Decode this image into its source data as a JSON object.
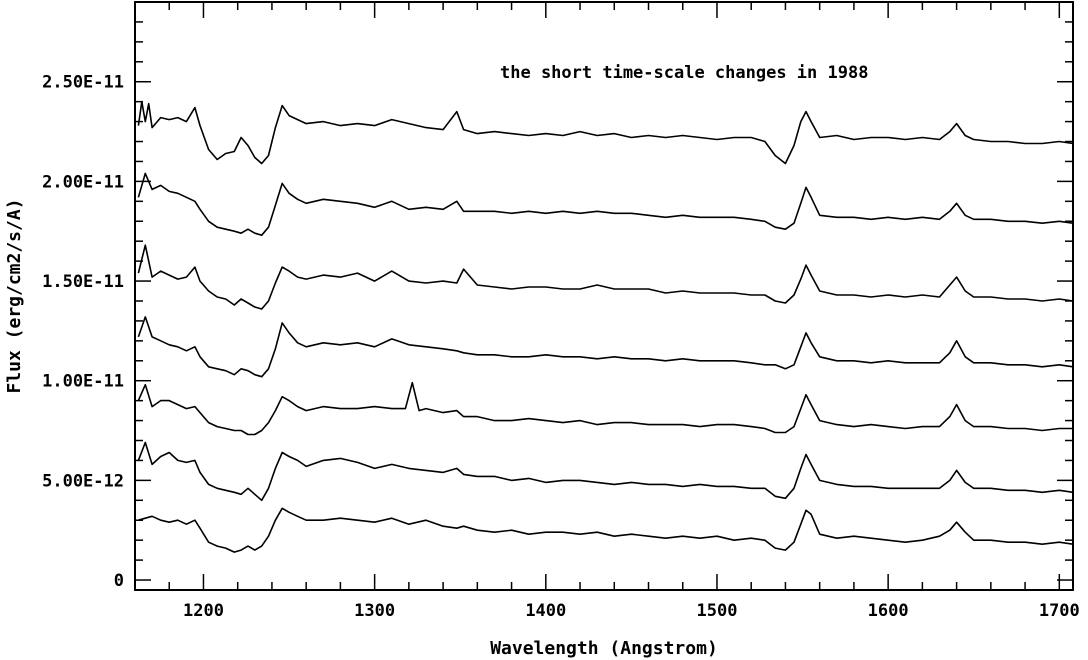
{
  "chart_data": {
    "type": "line",
    "title": "",
    "annotation": "the short time-scale changes in 1988",
    "xlabel": "Wavelength (Angstrom)",
    "ylabel": "Flux (erg/cm2/s/A)",
    "xlim": [
      1160,
      1708
    ],
    "ylim": [
      -5e-13,
      2.9e-11
    ],
    "x_ticks": [
      1200,
      1300,
      1400,
      1500,
      1600,
      1700
    ],
    "x_tick_labels": [
      "1200",
      "1300",
      "1400",
      "1500",
      "1600",
      "1700"
    ],
    "y_ticks": [
      0,
      5e-12,
      1e-11,
      1.5e-11,
      2e-11,
      2.5e-11
    ],
    "y_tick_labels": [
      "0",
      "5.00E-12",
      "1.00E-11",
      "1.50E-11",
      "2.00E-11",
      "2.50E-11"
    ],
    "grid": false,
    "line_color": "#000000",
    "series": [
      {
        "x": [
          1162,
          1166,
          1170,
          1175,
          1180,
          1185,
          1190,
          1195,
          1198,
          1203,
          1208,
          1213,
          1218,
          1222,
          1226,
          1230,
          1234,
          1238,
          1242,
          1246,
          1250,
          1255,
          1260,
          1270,
          1280,
          1290,
          1300,
          1310,
          1320,
          1330,
          1340,
          1348,
          1352,
          1360,
          1370,
          1380,
          1390,
          1400,
          1410,
          1420,
          1430,
          1440,
          1450,
          1460,
          1470,
          1480,
          1490,
          1500,
          1510,
          1520,
          1528,
          1534,
          1540,
          1545,
          1549,
          1552,
          1555,
          1560,
          1570,
          1580,
          1590,
          1600,
          1610,
          1620,
          1630,
          1636,
          1640,
          1645,
          1650,
          1660,
          1670,
          1680,
          1690,
          1700,
          1708
        ],
        "y": [
          3e-12,
          3.1e-12,
          3.2e-12,
          3e-12,
          2.9e-12,
          3e-12,
          2.8e-12,
          3e-12,
          2.6e-12,
          1.9e-12,
          1.7e-12,
          1.6e-12,
          1.4e-12,
          1.5e-12,
          1.7e-12,
          1.5e-12,
          1.7e-12,
          2.2e-12,
          3e-12,
          3.6e-12,
          3.4e-12,
          3.2e-12,
          3e-12,
          3e-12,
          3.1e-12,
          3e-12,
          2.9e-12,
          3.1e-12,
          2.8e-12,
          3e-12,
          2.7e-12,
          2.6e-12,
          2.7e-12,
          2.5e-12,
          2.4e-12,
          2.5e-12,
          2.3e-12,
          2.4e-12,
          2.4e-12,
          2.3e-12,
          2.4e-12,
          2.2e-12,
          2.3e-12,
          2.2e-12,
          2.1e-12,
          2.2e-12,
          2.1e-12,
          2.2e-12,
          2e-12,
          2.1e-12,
          2e-12,
          1.6e-12,
          1.5e-12,
          1.9e-12,
          2.8e-12,
          3.5e-12,
          3.3e-12,
          2.3e-12,
          2.1e-12,
          2.2e-12,
          2.1e-12,
          2e-12,
          1.9e-12,
          2e-12,
          2.2e-12,
          2.5e-12,
          2.9e-12,
          2.4e-12,
          2e-12,
          2e-12,
          1.9e-12,
          1.9e-12,
          1.8e-12,
          1.9e-12,
          1.8e-12
        ]
      },
      {
        "x": [
          1162,
          1166,
          1170,
          1175,
          1180,
          1185,
          1190,
          1195,
          1198,
          1203,
          1208,
          1213,
          1218,
          1222,
          1226,
          1230,
          1234,
          1238,
          1242,
          1246,
          1250,
          1255,
          1260,
          1270,
          1280,
          1290,
          1300,
          1310,
          1320,
          1330,
          1340,
          1348,
          1352,
          1360,
          1370,
          1380,
          1390,
          1400,
          1410,
          1420,
          1430,
          1440,
          1450,
          1460,
          1470,
          1480,
          1490,
          1500,
          1510,
          1520,
          1528,
          1534,
          1540,
          1545,
          1549,
          1552,
          1555,
          1560,
          1570,
          1580,
          1590,
          1600,
          1610,
          1620,
          1630,
          1636,
          1640,
          1645,
          1650,
          1660,
          1670,
          1680,
          1690,
          1700,
          1708
        ],
        "y": [
          6e-12,
          6.9e-12,
          5.8e-12,
          6.2e-12,
          6.4e-12,
          6e-12,
          5.9e-12,
          6e-12,
          5.4e-12,
          4.8e-12,
          4.6e-12,
          4.5e-12,
          4.4e-12,
          4.3e-12,
          4.6e-12,
          4.3e-12,
          4e-12,
          4.6e-12,
          5.6e-12,
          6.4e-12,
          6.2e-12,
          6e-12,
          5.7e-12,
          6e-12,
          6.1e-12,
          5.9e-12,
          5.6e-12,
          5.8e-12,
          5.6e-12,
          5.5e-12,
          5.4e-12,
          5.6e-12,
          5.3e-12,
          5.2e-12,
          5.2e-12,
          5e-12,
          5.1e-12,
          4.9e-12,
          5e-12,
          5e-12,
          4.9e-12,
          4.8e-12,
          4.9e-12,
          4.8e-12,
          4.8e-12,
          4.7e-12,
          4.8e-12,
          4.7e-12,
          4.7e-12,
          4.6e-12,
          4.6e-12,
          4.2e-12,
          4.1e-12,
          4.6e-12,
          5.6e-12,
          6.3e-12,
          5.8e-12,
          5e-12,
          4.8e-12,
          4.7e-12,
          4.7e-12,
          4.6e-12,
          4.6e-12,
          4.6e-12,
          4.6e-12,
          5e-12,
          5.5e-12,
          4.9e-12,
          4.6e-12,
          4.6e-12,
          4.5e-12,
          4.5e-12,
          4.4e-12,
          4.5e-12,
          4.4e-12
        ]
      },
      {
        "x": [
          1162,
          1166,
          1170,
          1175,
          1180,
          1185,
          1190,
          1195,
          1198,
          1203,
          1208,
          1213,
          1218,
          1222,
          1226,
          1230,
          1234,
          1238,
          1242,
          1246,
          1250,
          1255,
          1260,
          1270,
          1280,
          1290,
          1300,
          1310,
          1318,
          1322,
          1326,
          1330,
          1340,
          1348,
          1352,
          1360,
          1370,
          1380,
          1390,
          1400,
          1410,
          1420,
          1430,
          1440,
          1450,
          1460,
          1470,
          1480,
          1490,
          1500,
          1510,
          1520,
          1528,
          1534,
          1540,
          1545,
          1549,
          1552,
          1555,
          1560,
          1570,
          1580,
          1590,
          1600,
          1610,
          1620,
          1630,
          1636,
          1640,
          1645,
          1650,
          1660,
          1670,
          1680,
          1690,
          1700,
          1708
        ],
        "y": [
          9e-12,
          9.8e-12,
          8.7e-12,
          9e-12,
          9e-12,
          8.8e-12,
          8.6e-12,
          8.7e-12,
          8.4e-12,
          7.9e-12,
          7.7e-12,
          7.6e-12,
          7.5e-12,
          7.5e-12,
          7.3e-12,
          7.3e-12,
          7.5e-12,
          7.9e-12,
          8.5e-12,
          9.2e-12,
          9e-12,
          8.7e-12,
          8.5e-12,
          8.7e-12,
          8.6e-12,
          8.6e-12,
          8.7e-12,
          8.6e-12,
          8.6e-12,
          9.9e-12,
          8.5e-12,
          8.6e-12,
          8.4e-12,
          8.5e-12,
          8.2e-12,
          8.2e-12,
          8e-12,
          8e-12,
          8.1e-12,
          8e-12,
          7.9e-12,
          8e-12,
          7.8e-12,
          7.9e-12,
          7.9e-12,
          7.8e-12,
          7.8e-12,
          7.8e-12,
          7.7e-12,
          7.8e-12,
          7.8e-12,
          7.7e-12,
          7.6e-12,
          7.4e-12,
          7.4e-12,
          7.7e-12,
          8.6e-12,
          9.3e-12,
          8.8e-12,
          8e-12,
          7.8e-12,
          7.7e-12,
          7.8e-12,
          7.7e-12,
          7.6e-12,
          7.7e-12,
          7.7e-12,
          8.2e-12,
          8.8e-12,
          8e-12,
          7.7e-12,
          7.7e-12,
          7.6e-12,
          7.6e-12,
          7.5e-12,
          7.6e-12,
          7.6e-12
        ]
      },
      {
        "x": [
          1162,
          1166,
          1170,
          1175,
          1180,
          1185,
          1190,
          1195,
          1198,
          1203,
          1208,
          1213,
          1218,
          1222,
          1226,
          1230,
          1234,
          1238,
          1242,
          1246,
          1250,
          1255,
          1260,
          1270,
          1280,
          1290,
          1300,
          1310,
          1320,
          1330,
          1340,
          1348,
          1352,
          1360,
          1370,
          1380,
          1390,
          1400,
          1410,
          1420,
          1430,
          1440,
          1450,
          1460,
          1470,
          1480,
          1490,
          1500,
          1510,
          1520,
          1528,
          1534,
          1540,
          1545,
          1549,
          1552,
          1555,
          1560,
          1570,
          1580,
          1590,
          1600,
          1610,
          1620,
          1630,
          1636,
          1640,
          1645,
          1650,
          1660,
          1670,
          1680,
          1690,
          1700,
          1708
        ],
        "y": [
          1.22e-11,
          1.32e-11,
          1.22e-11,
          1.2e-11,
          1.18e-11,
          1.17e-11,
          1.15e-11,
          1.17e-11,
          1.12e-11,
          1.07e-11,
          1.06e-11,
          1.05e-11,
          1.03e-11,
          1.06e-11,
          1.05e-11,
          1.03e-11,
          1.02e-11,
          1.06e-11,
          1.16e-11,
          1.29e-11,
          1.24e-11,
          1.19e-11,
          1.17e-11,
          1.19e-11,
          1.18e-11,
          1.19e-11,
          1.17e-11,
          1.21e-11,
          1.18e-11,
          1.17e-11,
          1.16e-11,
          1.15e-11,
          1.14e-11,
          1.13e-11,
          1.13e-11,
          1.12e-11,
          1.12e-11,
          1.13e-11,
          1.12e-11,
          1.12e-11,
          1.11e-11,
          1.12e-11,
          1.11e-11,
          1.11e-11,
          1.1e-11,
          1.11e-11,
          1.1e-11,
          1.1e-11,
          1.1e-11,
          1.09e-11,
          1.08e-11,
          1.08e-11,
          1.06e-11,
          1.08e-11,
          1.17e-11,
          1.24e-11,
          1.19e-11,
          1.12e-11,
          1.1e-11,
          1.1e-11,
          1.09e-11,
          1.1e-11,
          1.09e-11,
          1.09e-11,
          1.09e-11,
          1.14e-11,
          1.2e-11,
          1.12e-11,
          1.09e-11,
          1.09e-11,
          1.08e-11,
          1.08e-11,
          1.07e-11,
          1.08e-11,
          1.07e-11
        ]
      },
      {
        "x": [
          1162,
          1166,
          1170,
          1175,
          1180,
          1185,
          1190,
          1195,
          1198,
          1203,
          1208,
          1213,
          1218,
          1222,
          1226,
          1230,
          1234,
          1238,
          1242,
          1246,
          1250,
          1255,
          1260,
          1270,
          1280,
          1290,
          1300,
          1310,
          1320,
          1330,
          1340,
          1348,
          1352,
          1360,
          1370,
          1380,
          1390,
          1400,
          1410,
          1420,
          1430,
          1440,
          1450,
          1460,
          1470,
          1480,
          1490,
          1500,
          1510,
          1520,
          1528,
          1534,
          1540,
          1545,
          1549,
          1552,
          1555,
          1560,
          1570,
          1580,
          1590,
          1600,
          1610,
          1620,
          1630,
          1636,
          1640,
          1645,
          1650,
          1660,
          1670,
          1680,
          1690,
          1700,
          1708
        ],
        "y": [
          1.54e-11,
          1.68e-11,
          1.52e-11,
          1.55e-11,
          1.53e-11,
          1.51e-11,
          1.52e-11,
          1.57e-11,
          1.5e-11,
          1.45e-11,
          1.42e-11,
          1.41e-11,
          1.38e-11,
          1.41e-11,
          1.39e-11,
          1.37e-11,
          1.36e-11,
          1.4e-11,
          1.49e-11,
          1.57e-11,
          1.55e-11,
          1.52e-11,
          1.51e-11,
          1.53e-11,
          1.52e-11,
          1.54e-11,
          1.5e-11,
          1.55e-11,
          1.5e-11,
          1.49e-11,
          1.5e-11,
          1.49e-11,
          1.56e-11,
          1.48e-11,
          1.47e-11,
          1.46e-11,
          1.47e-11,
          1.47e-11,
          1.46e-11,
          1.46e-11,
          1.48e-11,
          1.46e-11,
          1.46e-11,
          1.46e-11,
          1.44e-11,
          1.45e-11,
          1.44e-11,
          1.44e-11,
          1.44e-11,
          1.43e-11,
          1.43e-11,
          1.4e-11,
          1.39e-11,
          1.43e-11,
          1.51e-11,
          1.58e-11,
          1.53e-11,
          1.45e-11,
          1.43e-11,
          1.43e-11,
          1.42e-11,
          1.43e-11,
          1.42e-11,
          1.43e-11,
          1.42e-11,
          1.48e-11,
          1.52e-11,
          1.45e-11,
          1.42e-11,
          1.42e-11,
          1.41e-11,
          1.41e-11,
          1.4e-11,
          1.41e-11,
          1.4e-11
        ]
      },
      {
        "x": [
          1162,
          1166,
          1170,
          1175,
          1180,
          1185,
          1190,
          1195,
          1198,
          1203,
          1208,
          1213,
          1218,
          1222,
          1226,
          1230,
          1234,
          1238,
          1242,
          1246,
          1250,
          1255,
          1260,
          1270,
          1280,
          1290,
          1300,
          1310,
          1320,
          1330,
          1340,
          1348,
          1352,
          1360,
          1370,
          1380,
          1390,
          1400,
          1410,
          1420,
          1430,
          1440,
          1450,
          1460,
          1470,
          1480,
          1490,
          1500,
          1510,
          1520,
          1528,
          1534,
          1540,
          1545,
          1549,
          1552,
          1555,
          1560,
          1570,
          1580,
          1590,
          1600,
          1610,
          1620,
          1630,
          1636,
          1640,
          1645,
          1650,
          1660,
          1670,
          1680,
          1690,
          1700,
          1708
        ],
        "y": [
          1.92e-11,
          2.04e-11,
          1.96e-11,
          1.98e-11,
          1.95e-11,
          1.94e-11,
          1.92e-11,
          1.9e-11,
          1.86e-11,
          1.8e-11,
          1.77e-11,
          1.76e-11,
          1.75e-11,
          1.74e-11,
          1.76e-11,
          1.74e-11,
          1.73e-11,
          1.77e-11,
          1.88e-11,
          1.99e-11,
          1.94e-11,
          1.91e-11,
          1.89e-11,
          1.91e-11,
          1.9e-11,
          1.89e-11,
          1.87e-11,
          1.9e-11,
          1.86e-11,
          1.87e-11,
          1.86e-11,
          1.9e-11,
          1.85e-11,
          1.85e-11,
          1.85e-11,
          1.84e-11,
          1.85e-11,
          1.84e-11,
          1.85e-11,
          1.84e-11,
          1.85e-11,
          1.84e-11,
          1.84e-11,
          1.83e-11,
          1.82e-11,
          1.83e-11,
          1.82e-11,
          1.82e-11,
          1.82e-11,
          1.81e-11,
          1.8e-11,
          1.77e-11,
          1.76e-11,
          1.79e-11,
          1.89e-11,
          1.97e-11,
          1.92e-11,
          1.83e-11,
          1.82e-11,
          1.82e-11,
          1.81e-11,
          1.82e-11,
          1.81e-11,
          1.82e-11,
          1.81e-11,
          1.85e-11,
          1.89e-11,
          1.83e-11,
          1.81e-11,
          1.81e-11,
          1.8e-11,
          1.8e-11,
          1.79e-11,
          1.8e-11,
          1.79e-11
        ]
      },
      {
        "x": [
          1162,
          1164,
          1166,
          1168,
          1170,
          1175,
          1180,
          1185,
          1190,
          1195,
          1198,
          1203,
          1208,
          1213,
          1218,
          1222,
          1226,
          1230,
          1234,
          1238,
          1242,
          1246,
          1250,
          1255,
          1260,
          1270,
          1280,
          1290,
          1300,
          1310,
          1320,
          1330,
          1340,
          1348,
          1352,
          1360,
          1370,
          1380,
          1390,
          1400,
          1410,
          1420,
          1430,
          1440,
          1450,
          1460,
          1470,
          1480,
          1490,
          1500,
          1510,
          1520,
          1528,
          1534,
          1540,
          1545,
          1549,
          1552,
          1555,
          1560,
          1570,
          1580,
          1590,
          1600,
          1610,
          1620,
          1630,
          1636,
          1640,
          1645,
          1650,
          1660,
          1670,
          1680,
          1690,
          1700,
          1708
        ],
        "y": [
          2.28e-11,
          2.4e-11,
          2.3e-11,
          2.39e-11,
          2.27e-11,
          2.32e-11,
          2.31e-11,
          2.32e-11,
          2.3e-11,
          2.37e-11,
          2.28e-11,
          2.16e-11,
          2.11e-11,
          2.14e-11,
          2.15e-11,
          2.22e-11,
          2.18e-11,
          2.12e-11,
          2.09e-11,
          2.13e-11,
          2.27e-11,
          2.38e-11,
          2.33e-11,
          2.31e-11,
          2.29e-11,
          2.3e-11,
          2.28e-11,
          2.29e-11,
          2.28e-11,
          2.31e-11,
          2.29e-11,
          2.27e-11,
          2.26e-11,
          2.35e-11,
          2.26e-11,
          2.24e-11,
          2.25e-11,
          2.24e-11,
          2.23e-11,
          2.24e-11,
          2.23e-11,
          2.25e-11,
          2.23e-11,
          2.24e-11,
          2.22e-11,
          2.23e-11,
          2.22e-11,
          2.23e-11,
          2.22e-11,
          2.21e-11,
          2.22e-11,
          2.22e-11,
          2.2e-11,
          2.13e-11,
          2.09e-11,
          2.18e-11,
          2.3e-11,
          2.35e-11,
          2.3e-11,
          2.22e-11,
          2.23e-11,
          2.21e-11,
          2.22e-11,
          2.22e-11,
          2.21e-11,
          2.22e-11,
          2.21e-11,
          2.25e-11,
          2.29e-11,
          2.23e-11,
          2.21e-11,
          2.2e-11,
          2.2e-11,
          2.19e-11,
          2.19e-11,
          2.2e-11,
          2.19e-11
        ]
      }
    ]
  }
}
